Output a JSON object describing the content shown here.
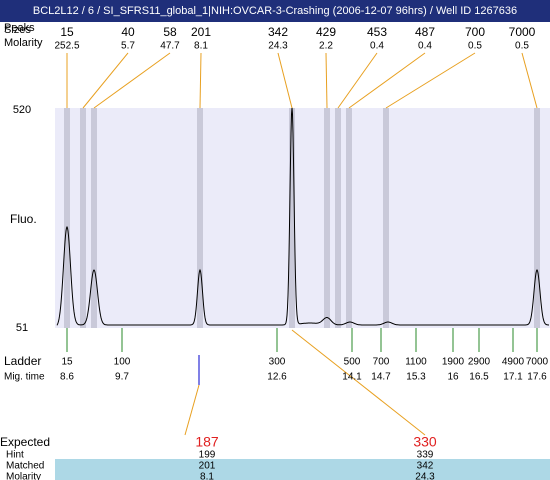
{
  "header": {
    "title": "BCL2L12 / 6 / SI_SFRS11_global_1|NIH:OVCAR-3-Crashing (2006-12-07 96hrs) / Well ID 1267636"
  },
  "peaks": {
    "label_top": "Peaks",
    "label_sizes": "Sizes",
    "label_molarity": "Molarity",
    "sizes": [
      15,
      40,
      58,
      201,
      342,
      429,
      453,
      487,
      700,
      7000
    ],
    "molarity": [
      252.5,
      5.7,
      47.7,
      8.1,
      24.3,
      2.2,
      0.4,
      0.4,
      0.5,
      0.5
    ]
  },
  "axis": {
    "y_top": "520",
    "y_bottom": "51",
    "y_label": "Fluo."
  },
  "ladder": {
    "label": "Ladder",
    "time_label": "Mig. time",
    "sizes": [
      15,
      100,
      300,
      500,
      700,
      1100,
      1900,
      2900,
      4900,
      7000
    ],
    "times": [
      8.6,
      9.7,
      12.6,
      14.1,
      14.7,
      15.3,
      16,
      16.5,
      17.1,
      17.6
    ]
  },
  "expected": {
    "label": "Expected",
    "hint_label": "Hint",
    "matched_label": "Matched",
    "molarity_label": "Molarity",
    "columns": [
      {
        "expected": 187,
        "hint": 199,
        "matched": 201,
        "molarity": 8.1
      },
      {
        "expected": 330,
        "hint": 339,
        "matched": 342,
        "molarity": 24.3
      }
    ]
  }
}
